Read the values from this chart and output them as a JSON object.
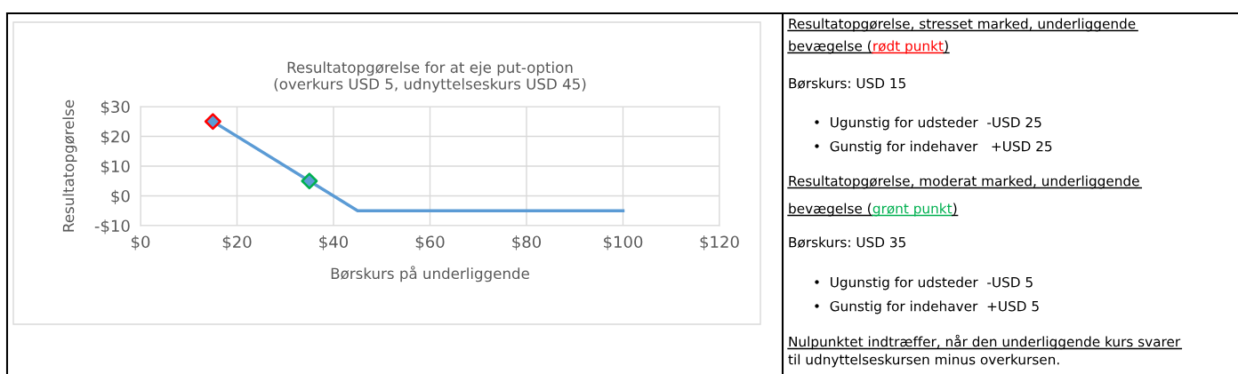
{
  "chart_data": {
    "type": "line",
    "title": "Resultatopgørelse for at eje put-option\n(overkurs USD 5, udnyttelseskurs USD 45)",
    "xlabel": "Børskurs på underliggende",
    "ylabel": "Resultatopgørelse",
    "series": [
      {
        "color": "#5b9bd5",
        "x": [
          15,
          35,
          45,
          100
        ],
        "values": [
          25,
          5,
          -5,
          -5
        ]
      },
      {
        "type": "scatter",
        "marker": "diamond",
        "color": "#5b9bd5",
        "colors": [
          "#ff0000",
          "#00b050"
        ],
        "x": [
          15,
          35
        ],
        "values": [
          25,
          5
        ]
      }
    ],
    "xlim": [
      0,
      120
    ],
    "xticks": [
      {
        "value": 0,
        "label": "$0"
      },
      {
        "value": 20,
        "label": "$20"
      },
      {
        "value": 40,
        "label": "$40"
      },
      {
        "value": 60,
        "label": "$60"
      },
      {
        "value": 80,
        "label": "$80"
      },
      {
        "value": 100,
        "label": "$100"
      },
      {
        "value": 120,
        "label": "$120"
      }
    ],
    "ylim": [
      -10,
      30
    ],
    "yticks": [
      {
        "value": -10,
        "label": "-$10"
      },
      {
        "value": 0,
        "label": "$0"
      },
      {
        "value": 10,
        "label": "$10"
      },
      {
        "value": 20,
        "label": "$20"
      },
      {
        "value": 30,
        "label": "$30"
      }
    ],
    "grid": true,
    "legend": false,
    "annotations": [
      "Resultatopgørelse, stresset marked, underliggende",
      "bevægelse (",
      "rødt punkt",
      ")",
      "Børskurs: USD 15",
      "•  Ugunstig for udsteder  -USD 25",
      "•  Gunstig for indehaver   +USD 25",
      "Resultatopgørelse, moderat marked, underliggende",
      "bevægelse (",
      "grønt punkt",
      ")",
      "Børskurs: USD 35",
      "•  Ugunstig for udsteder  -USD 5",
      "•  Gunstig for indehaver  +USD 5",
      "Nulpunktet indtræffer, når den underliggende kurs svarer",
      "til udnyttelseskursen minus overkursen."
    ]
  }
}
